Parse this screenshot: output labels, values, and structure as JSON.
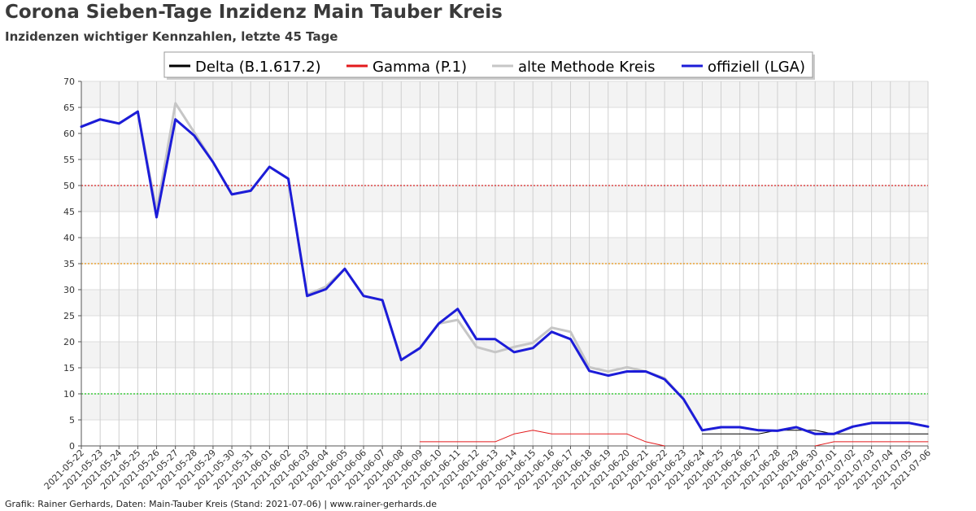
{
  "title": "Corona Sieben-Tage Inzidenz Main Tauber Kreis",
  "subtitle": "Inzidenzen wichtiger Kennzahlen, letzte 45 Tage",
  "footer": "Grafik: Rainer Gerhards, Daten: Main-Tauber Kreis (Stand: 2021-07-06) | www.rainer-gerhards.de",
  "chart_data": {
    "type": "line",
    "ylim": [
      0,
      70
    ],
    "yticks": [
      0,
      5,
      10,
      15,
      20,
      25,
      30,
      35,
      40,
      45,
      50,
      55,
      60,
      65,
      70
    ],
    "x": [
      "2021-05-22",
      "2021-05-23",
      "2021-05-24",
      "2021-05-25",
      "2021-05-26",
      "2021-05-27",
      "2021-05-28",
      "2021-05-29",
      "2021-05-30",
      "2021-05-31",
      "2021-06-01",
      "2021-06-02",
      "2021-06-03",
      "2021-06-04",
      "2021-06-05",
      "2021-06-06",
      "2021-06-07",
      "2021-06-08",
      "2021-06-09",
      "2021-06-10",
      "2021-06-11",
      "2021-06-12",
      "2021-06-13",
      "2021-06-14",
      "2021-06-15",
      "2021-06-16",
      "2021-06-17",
      "2021-06-18",
      "2021-06-19",
      "2021-06-20",
      "2021-06-21",
      "2021-06-22",
      "2021-06-23",
      "2021-06-24",
      "2021-06-25",
      "2021-06-26",
      "2021-06-27",
      "2021-06-28",
      "2021-06-29",
      "2021-06-30",
      "2021-07-01",
      "2021-07-02",
      "2021-07-03",
      "2021-07-04",
      "2021-07-05",
      "2021-07-06"
    ],
    "series": [
      {
        "name": "Delta (B.1.617.2)",
        "color": "#000000",
        "width": 1,
        "values": [
          null,
          null,
          null,
          null,
          null,
          null,
          null,
          null,
          null,
          null,
          null,
          null,
          null,
          null,
          null,
          null,
          null,
          null,
          null,
          null,
          null,
          null,
          null,
          null,
          null,
          null,
          null,
          null,
          null,
          null,
          null,
          null,
          null,
          2.3,
          2.3,
          2.3,
          2.3,
          3.0,
          3.0,
          3.0,
          2.3,
          2.3,
          2.3,
          2.3,
          2.3,
          2.3
        ]
      },
      {
        "name": "Gamma (P.1)",
        "color": "#e31a1c",
        "width": 1,
        "values": [
          null,
          null,
          null,
          null,
          null,
          null,
          null,
          null,
          null,
          null,
          null,
          null,
          null,
          null,
          null,
          null,
          null,
          null,
          0.8,
          0.8,
          0.8,
          0.8,
          0.8,
          2.3,
          3.0,
          2.3,
          2.3,
          2.3,
          2.3,
          2.3,
          0.8,
          0.0,
          null,
          null,
          null,
          null,
          null,
          null,
          null,
          0.0,
          0.8,
          0.8,
          0.8,
          0.8,
          0.8,
          0.8
        ]
      },
      {
        "name": "alte Methode Kreis",
        "color": "#c6c6c6",
        "width": 3,
        "values": [
          61.3,
          62.7,
          61.9,
          64.2,
          45.0,
          65.8,
          60.2,
          54.5,
          48.3,
          49.0,
          53.6,
          51.3,
          29.0,
          30.6,
          34.0,
          28.8,
          28.0,
          16.5,
          18.8,
          23.5,
          24.2,
          19.0,
          18.0,
          19.0,
          19.8,
          22.7,
          21.9,
          15.1,
          14.3,
          15.1,
          14.3,
          13.0,
          9.0,
          3.0,
          3.6,
          3.6,
          3.0,
          2.9,
          3.6,
          2.3,
          2.3,
          3.7,
          4.4,
          4.4,
          4.4,
          3.7
        ]
      },
      {
        "name": "offiziell (LGA)",
        "color": "#1c1cd8",
        "width": 3,
        "values": [
          61.3,
          62.7,
          61.9,
          64.2,
          43.9,
          62.7,
          59.6,
          54.5,
          48.3,
          49.0,
          53.6,
          51.3,
          28.8,
          30.1,
          34.0,
          28.8,
          28.0,
          16.5,
          18.8,
          23.5,
          26.3,
          20.5,
          20.5,
          18.0,
          18.8,
          21.9,
          20.5,
          14.4,
          13.5,
          14.3,
          14.3,
          12.8,
          9.0,
          3.0,
          3.6,
          3.6,
          3.0,
          2.9,
          3.6,
          2.3,
          2.3,
          3.7,
          4.4,
          4.4,
          4.4,
          3.7
        ]
      }
    ],
    "reference_lines": [
      {
        "value": 50,
        "color": "#d62020"
      },
      {
        "value": 35,
        "color": "#e8900c"
      },
      {
        "value": 10,
        "color": "#18c418"
      }
    ],
    "grid": true,
    "legend": "top-center"
  }
}
